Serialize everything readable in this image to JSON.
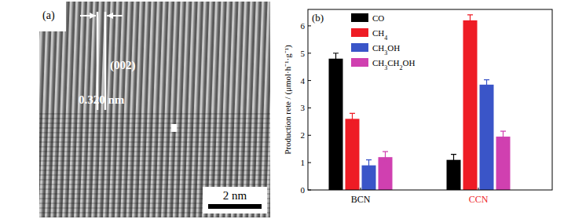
{
  "panel_a": {
    "label": "(a)",
    "plane": "(002)",
    "spacing": "0.320 nm",
    "scale_bar": "2 nm"
  },
  "chart_data": {
    "type": "bar",
    "panel_label": "(b)",
    "y_label": "Production rete / (μmol·h⁻¹·g⁻¹)",
    "categories": [
      "BCN",
      "CCN"
    ],
    "series": [
      {
        "name": "CO",
        "color": "#000000",
        "values": [
          4.8,
          1.1
        ],
        "errors": [
          0.2,
          0.2
        ]
      },
      {
        "name": "CH4",
        "color": "#ee1c25",
        "values": [
          2.6,
          6.2
        ],
        "errors": [
          0.2,
          0.2
        ]
      },
      {
        "name": "CH3OH",
        "color": "#3a55c8",
        "values": [
          0.9,
          3.85
        ],
        "errors": [
          0.2,
          0.18
        ]
      },
      {
        "name": "CH3CH2OH",
        "color": "#d040b0",
        "values": [
          1.2,
          1.95
        ],
        "errors": [
          0.2,
          0.2
        ]
      }
    ],
    "ylim": [
      0,
      6.6
    ],
    "yticks": [
      0,
      1,
      2,
      3,
      4,
      5,
      6
    ],
    "legend": "upper left",
    "grid": false
  }
}
